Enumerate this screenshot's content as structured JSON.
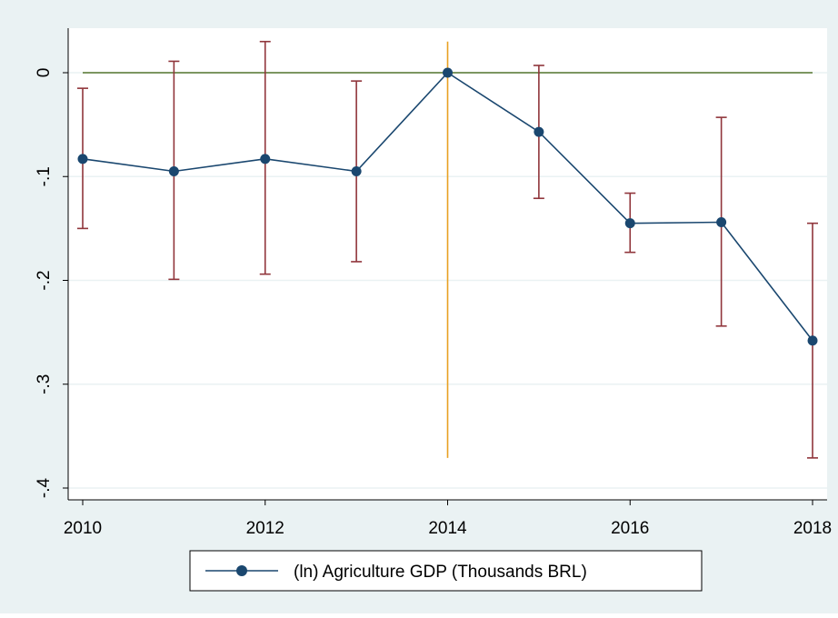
{
  "chart_data": {
    "type": "line",
    "title": "",
    "xlabel": "",
    "ylabel": "",
    "x": [
      2010,
      2011,
      2012,
      2013,
      2014,
      2015,
      2016,
      2017,
      2018
    ],
    "xlim": [
      2010,
      2018
    ],
    "ylim": [
      -0.4,
      0
    ],
    "x_ticks": [
      2010,
      2012,
      2014,
      2016,
      2018
    ],
    "x_tick_labels": [
      "2010",
      "2012",
      "2014",
      "2016",
      "2018"
    ],
    "y_ticks": [
      0,
      -0.1,
      -0.2,
      -0.3,
      -0.4
    ],
    "y_tick_labels": [
      "0",
      "-.1",
      "-.2",
      "-.3",
      "-.4"
    ],
    "grid": true,
    "series": [
      {
        "name": "(ln) Agriculture GDP (Thousands BRL)",
        "values": [
          -0.083,
          -0.095,
          -0.083,
          -0.095,
          0.0,
          -0.057,
          -0.145,
          -0.144,
          -0.258
        ],
        "ci_lower": [
          -0.15,
          -0.199,
          -0.194,
          -0.182,
          0.0,
          -0.121,
          -0.173,
          -0.244,
          -0.371
        ],
        "ci_upper": [
          -0.015,
          0.011,
          0.03,
          -0.008,
          0.0,
          0.007,
          -0.116,
          -0.043,
          -0.145
        ]
      }
    ],
    "reference_lines": {
      "horizontal_y": 0,
      "vertical_x": 2014,
      "vertical_range": [
        -0.371,
        0.03
      ]
    },
    "legend": {
      "placement": "bottom-center",
      "entries": [
        "(ln) Agriculture GDP (Thousands BRL)"
      ]
    },
    "colors": {
      "outer_background": "#EAF2F3",
      "plot_background": "#FFFFFF",
      "grid": "#EAF2F3",
      "series_line": "#1A476F",
      "marker": "#1A476F",
      "error_bar": "#90353B",
      "horizontal_ref": "#55752F",
      "vertical_ref": "#E8A020",
      "axis": "#000000"
    }
  }
}
